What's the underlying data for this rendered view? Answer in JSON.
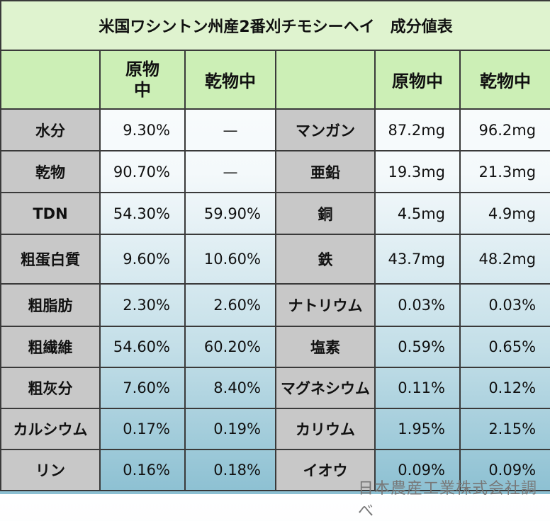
{
  "title": "米国ワシントン州産2番刈チモシーヘイ　成分値表",
  "header": {
    "left": [
      "原物中",
      "乾物中"
    ],
    "right": [
      "原物中",
      "乾物中"
    ]
  },
  "rows": [
    [
      "水分",
      "9.30%",
      "—",
      "マンガン",
      "87.2mg",
      "96.2mg"
    ],
    [
      "乾物",
      "90.70%",
      "—",
      "亜鉛",
      "19.3mg",
      "21.3mg"
    ],
    [
      "TDN",
      "54.30%",
      "59.90%",
      "銅",
      "4.5mg",
      "4.9mg"
    ],
    [
      "粗蛋白質",
      "9.60%",
      "10.60%",
      "鉄",
      "43.7mg",
      "48.2mg"
    ],
    [
      "粗脂肪",
      "2.30%",
      "2.60%",
      "ナトリウム",
      "0.03%",
      "0.03%"
    ],
    [
      "粗繊維",
      "54.60%",
      "60.20%",
      "塩素",
      "0.59%",
      "0.65%"
    ],
    [
      "粗灰分",
      "7.60%",
      "8.40%",
      "マグネシウム",
      "0.11%",
      "0.12%"
    ],
    [
      "カルシウム",
      "0.17%",
      "0.19%",
      "カリウム",
      "1.95%",
      "2.15%"
    ],
    [
      "リン",
      "0.16%",
      "0.18%",
      "イオウ",
      "0.09%",
      "0.09%"
    ]
  ],
  "footer": "日本農産工業株式会社調べ"
}
